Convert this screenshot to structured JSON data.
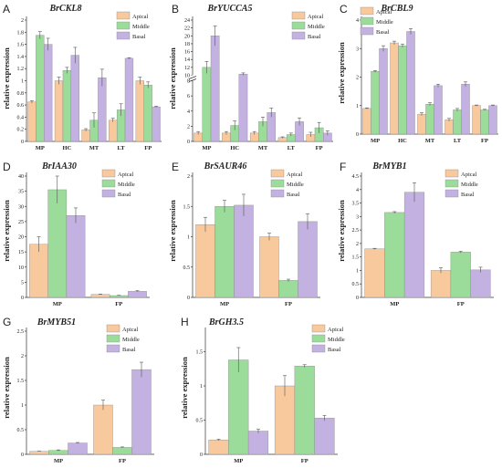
{
  "colors": {
    "Apical": "#F9C99E",
    "Middle": "#9BDC9B",
    "Basal": "#C3B1E1",
    "bar_outline": "#8a8a8a",
    "error_bar": "#555555"
  },
  "chart_data": [
    {
      "panel": "A",
      "type": "bar",
      "title": "BrCKL8",
      "ylabel": "relative expression",
      "xlabel": "",
      "categories": [
        "MP",
        "HC",
        "MT",
        "LT",
        "FP"
      ],
      "ylim": [
        0,
        2.0
      ],
      "yticks": [
        0.0,
        0.2,
        0.4,
        0.6,
        0.8,
        1.0,
        1.2,
        1.4,
        1.6,
        1.8,
        2.0
      ],
      "legend": "top-right",
      "grid": false,
      "series": [
        {
          "name": "Apical",
          "values": [
            0.65,
            1.0,
            0.19,
            0.35,
            1.0
          ],
          "errors": [
            0.02,
            0.06,
            0.02,
            0.03,
            0.06
          ]
        },
        {
          "name": "Middle",
          "values": [
            1.75,
            1.17,
            0.35,
            0.52,
            0.93
          ],
          "errors": [
            0.06,
            0.05,
            0.12,
            0.1,
            0.05
          ]
        },
        {
          "name": "Basal",
          "values": [
            1.6,
            1.42,
            1.05,
            1.37,
            0.57
          ],
          "errors": [
            0.1,
            0.13,
            0.14,
            0.01,
            0.01
          ]
        }
      ]
    },
    {
      "panel": "B",
      "type": "bar",
      "title": "BrYUCCA5",
      "ylabel": "relative expression",
      "xlabel": "",
      "categories": [
        "MP",
        "HC",
        "MT",
        "LT",
        "FP"
      ],
      "ylim": [
        0,
        24
      ],
      "yticks": [
        0,
        2,
        4,
        6,
        8,
        10,
        12,
        14,
        16,
        18,
        20,
        22,
        24
      ],
      "ytick_labels": [
        "0",
        "2",
        "4",
        "6",
        "8",
        "10",
        "12",
        "14",
        "16",
        "18",
        "20",
        "22",
        "24"
      ],
      "axis_break": [
        8,
        10
      ],
      "legend": "top-right",
      "grid": false,
      "series": [
        {
          "name": "Apical",
          "values": [
            1.1,
            1.1,
            1.1,
            0.5,
            0.9
          ],
          "errors": [
            0.2,
            0.2,
            0.2,
            0.1,
            0.3
          ]
        },
        {
          "name": "Middle",
          "values": [
            12.0,
            2.1,
            2.6,
            0.9,
            1.8
          ],
          "errors": [
            1.5,
            0.6,
            0.6,
            0.2,
            0.7
          ]
        },
        {
          "name": "Basal",
          "values": [
            20.0,
            10.3,
            3.8,
            2.6,
            1.1
          ],
          "errors": [
            2.5,
            0.3,
            0.6,
            0.5,
            0.3
          ]
        }
      ]
    },
    {
      "panel": "C",
      "type": "bar",
      "title": "BrCBL9",
      "ylabel": "relative expression",
      "xlabel": "",
      "categories": [
        "MP",
        "HC",
        "MT",
        "LT",
        "FP"
      ],
      "ylim": [
        0,
        4
      ],
      "yticks": [
        0,
        1,
        2,
        3,
        4
      ],
      "legend": "top-left",
      "grid": false,
      "series": [
        {
          "name": "Apical",
          "values": [
            0.9,
            3.2,
            0.7,
            0.5,
            1.0
          ],
          "errors": [
            0.02,
            0.06,
            0.05,
            0.05,
            0.02
          ]
        },
        {
          "name": "Middle",
          "values": [
            2.2,
            3.1,
            1.05,
            0.85,
            0.85
          ],
          "errors": [
            0.03,
            0.06,
            0.05,
            0.05,
            0.02
          ]
        },
        {
          "name": "Basal",
          "values": [
            3.0,
            3.6,
            1.7,
            1.75,
            1.0
          ],
          "errors": [
            0.1,
            0.1,
            0.05,
            0.08,
            0.02
          ]
        }
      ]
    },
    {
      "panel": "D",
      "type": "bar",
      "title": "BrIAA30",
      "ylabel": "relative expression",
      "xlabel": "",
      "categories": [
        "MP",
        "FP"
      ],
      "ylim": [
        0,
        40
      ],
      "yticks": [
        0,
        5,
        10,
        15,
        20,
        25,
        30,
        35,
        40
      ],
      "legend": "top-right",
      "grid": false,
      "series": [
        {
          "name": "Apical",
          "values": [
            17.5,
            1.0
          ],
          "errors": [
            2.5,
            0.1
          ]
        },
        {
          "name": "Middle",
          "values": [
            35.5,
            0.6
          ],
          "errors": [
            4.5,
            0.1
          ]
        },
        {
          "name": "Basal",
          "values": [
            27.0,
            2.0
          ],
          "errors": [
            2.5,
            0.2
          ]
        }
      ]
    },
    {
      "panel": "E",
      "type": "bar",
      "title": "BrSAUR46",
      "ylabel": "relative expression",
      "xlabel": "",
      "categories": [
        "MP",
        "FP"
      ],
      "ylim": [
        0,
        2.0
      ],
      "yticks": [
        0.0,
        0.5,
        1.0,
        1.5,
        2.0
      ],
      "legend": "top-right",
      "grid": false,
      "series": [
        {
          "name": "Apical",
          "values": [
            1.2,
            1.0
          ],
          "errors": [
            0.12,
            0.06
          ]
        },
        {
          "name": "Middle",
          "values": [
            1.5,
            0.28
          ],
          "errors": [
            0.1,
            0.02
          ]
        },
        {
          "name": "Basal",
          "values": [
            1.52,
            1.25
          ],
          "errors": [
            0.18,
            0.13
          ]
        }
      ]
    },
    {
      "panel": "F",
      "type": "bar",
      "title": "BrMYB1",
      "ylabel": "relative expression",
      "xlabel": "",
      "categories": [
        "MP",
        "FP"
      ],
      "ylim": [
        0,
        4.5
      ],
      "yticks": [
        0.0,
        0.5,
        1.0,
        1.5,
        2.0,
        2.5,
        3.0,
        3.5,
        4.0,
        4.5
      ],
      "legend": "top-right",
      "grid": false,
      "series": [
        {
          "name": "Apical",
          "values": [
            1.8,
            1.0
          ],
          "errors": [
            0.02,
            0.1
          ]
        },
        {
          "name": "Middle",
          "values": [
            3.15,
            1.68
          ],
          "errors": [
            0.03,
            0.03
          ]
        },
        {
          "name": "Basal",
          "values": [
            3.9,
            1.02
          ],
          "errors": [
            0.35,
            0.1
          ]
        }
      ]
    },
    {
      "panel": "G",
      "type": "bar",
      "title": "BrMYB51",
      "ylabel": "relative expression",
      "xlabel": "",
      "categories": [
        "MP",
        "FP"
      ],
      "ylim": [
        0,
        2.5
      ],
      "yticks": [
        0.0,
        0.5,
        1.0,
        1.5,
        2.0,
        2.5
      ],
      "legend": "top-right",
      "grid": false,
      "series": [
        {
          "name": "Apical",
          "values": [
            0.06,
            1.0
          ],
          "errors": [
            0.005,
            0.1
          ]
        },
        {
          "name": "Middle",
          "values": [
            0.08,
            0.14
          ],
          "errors": [
            0.01,
            0.01
          ]
        },
        {
          "name": "Basal",
          "values": [
            0.23,
            1.72
          ],
          "errors": [
            0.01,
            0.15
          ]
        }
      ]
    },
    {
      "panel": "H",
      "type": "bar",
      "title": "BrGH3.5",
      "ylabel": "relative expression",
      "xlabel": "",
      "categories": [
        "MP",
        "FP"
      ],
      "ylim": [
        0,
        1.8
      ],
      "yticks": [
        0.0,
        0.5,
        1.0,
        1.5
      ],
      "legend": "top-right",
      "grid": false,
      "series": [
        {
          "name": "Apical",
          "values": [
            0.21,
            1.0
          ],
          "errors": [
            0.01,
            0.15
          ]
        },
        {
          "name": "Middle",
          "values": [
            1.38,
            1.29
          ],
          "errors": [
            0.18,
            0.02
          ]
        },
        {
          "name": "Basal",
          "values": [
            0.34,
            0.53
          ],
          "errors": [
            0.03,
            0.04
          ]
        }
      ]
    }
  ]
}
